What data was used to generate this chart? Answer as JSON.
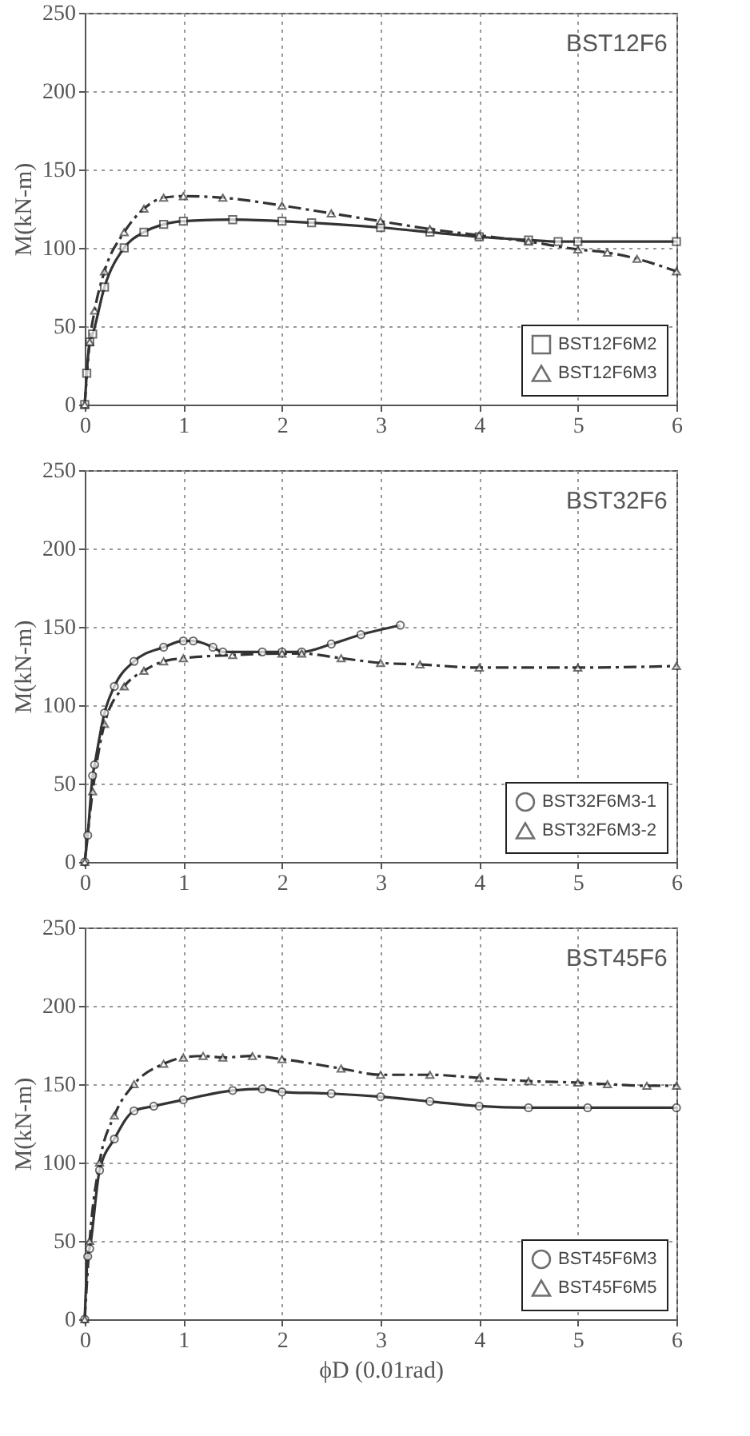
{
  "chart_data": [
    {
      "type": "line",
      "title": "BST12F6",
      "ylabel": "M(kN-m)",
      "xlim": [
        0,
        6
      ],
      "xticks": [
        0,
        1,
        2,
        3,
        4,
        5,
        6
      ],
      "ylim": [
        0,
        250
      ],
      "yticks": [
        0,
        50,
        100,
        150,
        200,
        250
      ],
      "grid": true,
      "legend": "bottom right",
      "series": [
        {
          "name": "BST12F6M2",
          "color": "#333333",
          "line_style": "solid",
          "marker": "square",
          "x": [
            0,
            0.02,
            0.05,
            0.08,
            0.2,
            0.4,
            0.6,
            0.8,
            1,
            1.5,
            2,
            2.3,
            3,
            3.5,
            4,
            4.5,
            4.8,
            5,
            6
          ],
          "values": [
            0,
            20,
            40,
            45,
            75,
            100,
            110,
            115,
            117,
            118,
            117,
            116,
            113,
            110,
            107,
            105,
            104,
            104,
            104
          ]
        },
        {
          "name": "BST12F6M3",
          "color": "#333333",
          "line_style": "dashed",
          "marker": "triangle",
          "x": [
            0,
            0.05,
            0.1,
            0.2,
            0.4,
            0.6,
            0.8,
            1,
            1.4,
            2,
            2.5,
            3,
            3.5,
            4,
            4.5,
            5,
            5.3,
            5.6,
            6
          ],
          "values": [
            0,
            40,
            60,
            85,
            110,
            125,
            132,
            133,
            132,
            127,
            122,
            117,
            112,
            108,
            104,
            99,
            97,
            93,
            85
          ]
        }
      ]
    },
    {
      "type": "line",
      "title": "BST32F6",
      "ylabel": "M(kN-m)",
      "xlim": [
        0,
        6
      ],
      "xticks": [
        0,
        1,
        2,
        3,
        4,
        5,
        6
      ],
      "ylim": [
        0,
        250
      ],
      "yticks": [
        0,
        50,
        100,
        150,
        200,
        250
      ],
      "grid": true,
      "legend": "bottom right",
      "series": [
        {
          "name": "BST32F6M3-1",
          "color": "#333333",
          "line_style": "solid",
          "marker": "circle",
          "x": [
            0,
            0.03,
            0.08,
            0.1,
            0.2,
            0.3,
            0.5,
            0.8,
            1,
            1.1,
            1.3,
            1.4,
            1.8,
            2,
            2.2,
            2.5,
            2.8,
            3.2
          ],
          "values": [
            0,
            17,
            55,
            62,
            95,
            112,
            128,
            137,
            141,
            141,
            137,
            134,
            134,
            134,
            134,
            139,
            145,
            151
          ]
        },
        {
          "name": "BST32F6M3-2",
          "color": "#333333",
          "line_style": "dashed",
          "marker": "triangle",
          "x": [
            0,
            0.08,
            0.2,
            0.4,
            0.6,
            0.8,
            1,
            1.5,
            2,
            2.2,
            2.6,
            3,
            3.4,
            4,
            5,
            6
          ],
          "values": [
            0,
            45,
            88,
            112,
            122,
            128,
            130,
            132,
            133,
            133,
            130,
            127,
            126,
            124,
            124,
            125
          ]
        }
      ]
    },
    {
      "type": "line",
      "title": "BST45F6",
      "xlabel": "ϕD (0.01rad)",
      "ylabel": "M(kN-m)",
      "xlim": [
        0,
        6
      ],
      "xticks": [
        0,
        1,
        2,
        3,
        4,
        5,
        6
      ],
      "ylim": [
        0,
        250
      ],
      "yticks": [
        0,
        50,
        100,
        150,
        200,
        250
      ],
      "grid": true,
      "legend": "bottom right",
      "series": [
        {
          "name": "BST45F6M3",
          "color": "#333333",
          "line_style": "solid",
          "marker": "circle",
          "x": [
            0,
            0.03,
            0.05,
            0.15,
            0.3,
            0.5,
            0.7,
            1,
            1.5,
            1.8,
            2,
            2.5,
            3,
            3.5,
            4,
            4.5,
            5.1,
            6
          ],
          "values": [
            0,
            40,
            45,
            95,
            115,
            133,
            136,
            140,
            146,
            147,
            145,
            144,
            142,
            139,
            136,
            135,
            135,
            135
          ]
        },
        {
          "name": "BST45F6M5",
          "color": "#333333",
          "line_style": "dashed",
          "marker": "triangle",
          "x": [
            0,
            0.05,
            0.15,
            0.3,
            0.5,
            0.8,
            1,
            1.2,
            1.4,
            1.7,
            2,
            2.6,
            3,
            3.5,
            4,
            4.5,
            5,
            5.3,
            5.7,
            6
          ],
          "values": [
            0,
            50,
            100,
            130,
            150,
            163,
            167,
            168,
            167,
            168,
            166,
            160,
            156,
            156,
            154,
            152,
            151,
            150,
            149,
            149
          ]
        }
      ]
    }
  ]
}
